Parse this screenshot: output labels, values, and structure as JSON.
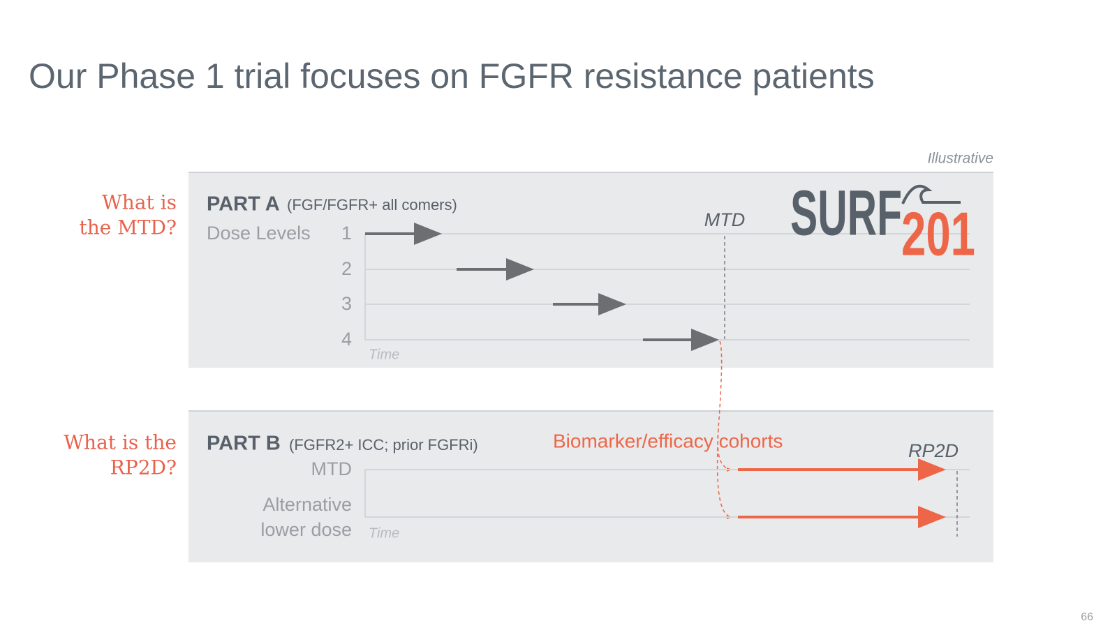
{
  "header": {
    "title": "Our Phase 1 trial focuses on FGFR resistance patients",
    "note": "Illustrative"
  },
  "logo": {
    "word": "SURF",
    "number": "201"
  },
  "part_a": {
    "question": [
      "What is",
      "the MTD?"
    ],
    "label": "PART A",
    "subtitle": "(FGF/FGFR+ all comers)",
    "axis_label": "Dose Levels",
    "levels": [
      "1",
      "2",
      "3",
      "4"
    ],
    "marker": "MTD",
    "time": "Time"
  },
  "part_b": {
    "question": [
      "What is the",
      "RP2D?"
    ],
    "label": "PART B",
    "subtitle": "(FGFR2+ ICC; prior FGFRi)",
    "cohorts": "Biomarker/efficacy cohorts",
    "marker": "RP2D",
    "rows": [
      [
        "MTD"
      ],
      [
        "Alternative",
        "lower dose"
      ]
    ],
    "time": "Time"
  },
  "footer": {
    "page": "66"
  }
}
